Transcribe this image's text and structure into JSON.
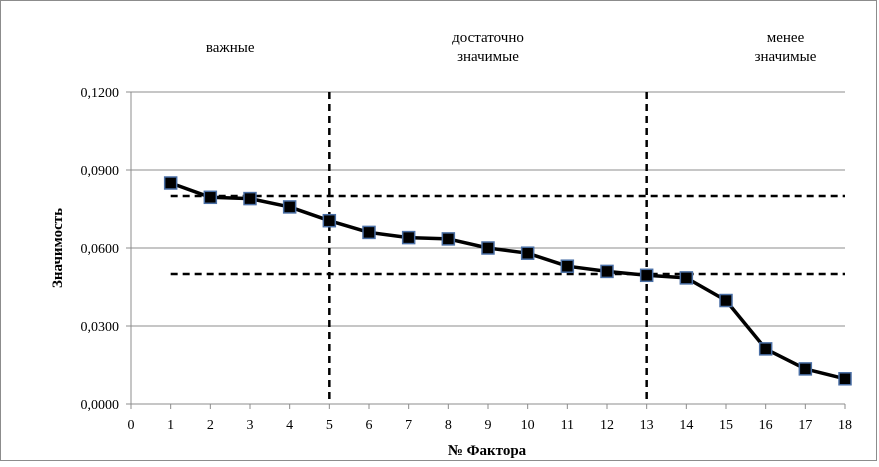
{
  "chart_data": {
    "type": "line",
    "title": "",
    "xlabel": "№ Фактора",
    "ylabel": "Значимость",
    "xlim": [
      0,
      18
    ],
    "ylim": [
      0,
      0.12
    ],
    "x_ticks": [
      "0",
      "1",
      "2",
      "3",
      "4",
      "5",
      "6",
      "7",
      "8",
      "9",
      "10",
      "11",
      "12",
      "13",
      "14",
      "15",
      "16",
      "17",
      "18"
    ],
    "y_ticks": [
      "0,0000",
      "0,0300",
      "0,0600",
      "0,0900",
      "0,1200"
    ],
    "y_tick_values": [
      0,
      0.03,
      0.06,
      0.09,
      0.12
    ],
    "grid": "horizontal",
    "series": [
      {
        "x": [
          1,
          2,
          3,
          4,
          5,
          6,
          7,
          8,
          9,
          10,
          11,
          12,
          13,
          14,
          15,
          16,
          17,
          18
        ],
        "values": [
          0.085,
          0.0795,
          0.079,
          0.0758,
          0.0705,
          0.066,
          0.064,
          0.0635,
          0.06,
          0.058,
          0.053,
          0.051,
          0.0495,
          0.0485,
          0.0398,
          0.0212,
          0.0135,
          0.0097
        ],
        "color": "#000000",
        "marker": "square",
        "marker_color": "#000000",
        "marker_edge": "#4a6fa5"
      }
    ],
    "reference_lines": {
      "vertical_x": [
        5,
        13
      ],
      "horizontal_y": [
        0.08,
        0.05
      ],
      "horizontal_x_range": [
        1,
        18
      ],
      "style": "dashed"
    },
    "region_labels": [
      {
        "lines": [
          "важные"
        ],
        "x_center": 2.5
      },
      {
        "lines": [
          "достаточно",
          "значимые"
        ],
        "x_center": 9
      },
      {
        "lines": [
          "менее",
          "значимые"
        ],
        "x_center": 16.5
      }
    ]
  }
}
